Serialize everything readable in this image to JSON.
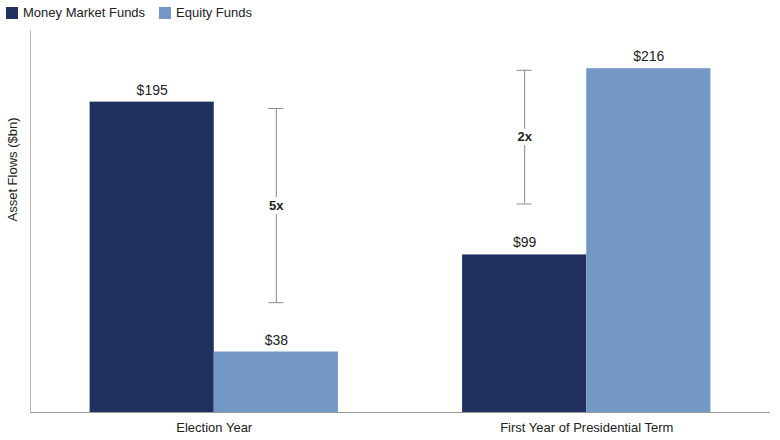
{
  "chart_data": {
    "type": "bar",
    "categories": [
      "Election Year",
      "First Year of Presidential Term"
    ],
    "series": [
      {
        "name": "Money Market Funds",
        "color": "#21305f",
        "values": [
          195,
          99
        ],
        "value_labels": [
          "$195",
          "$99"
        ]
      },
      {
        "name": "Equity Funds",
        "color": "#7398c6",
        "values": [
          38,
          216
        ],
        "value_labels": [
          "$38",
          "$216"
        ]
      }
    ],
    "ylabel": "Asset Flows ($bn)",
    "ylim": [
      0,
      240
    ],
    "tick_labels": "x",
    "data_labels": true,
    "legend": "top-left",
    "grid": false,
    "annotations": [
      {
        "text": "5x",
        "category": "Election Year",
        "y1": 69,
        "y2": 191
      },
      {
        "text": "2x",
        "category": "First Year of Presidential Term",
        "y1": 131,
        "y2": 215
      }
    ]
  }
}
